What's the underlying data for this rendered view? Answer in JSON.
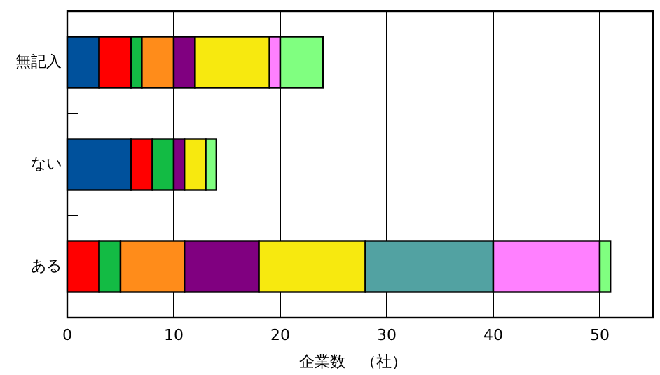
{
  "chart_data": {
    "type": "bar",
    "orientation": "horizontal",
    "stacked": true,
    "categories": [
      "無記入",
      "ない",
      "ある"
    ],
    "xlabel": "企業数　（社）",
    "xlim": [
      0,
      55
    ],
    "xticks": [
      0,
      10,
      20,
      30,
      40,
      50
    ],
    "grid": "x",
    "series": [
      {
        "color": "#00519c",
        "values": [
          3,
          6,
          0
        ]
      },
      {
        "color": "#ff0000",
        "values": [
          3,
          2,
          3
        ]
      },
      {
        "color": "#13bb44",
        "values": [
          1,
          2,
          2
        ]
      },
      {
        "color": "#ff8c1a",
        "values": [
          3,
          0,
          6
        ]
      },
      {
        "color": "#800080",
        "values": [
          2,
          1,
          7
        ]
      },
      {
        "color": "#f7e90f",
        "values": [
          7,
          2,
          10
        ]
      },
      {
        "color": "#52a2a2",
        "values": [
          0,
          0,
          12
        ]
      },
      {
        "color": "#ff80ff",
        "values": [
          1,
          0,
          10
        ]
      },
      {
        "color": "#80ff80",
        "values": [
          4,
          1,
          1
        ]
      }
    ]
  }
}
